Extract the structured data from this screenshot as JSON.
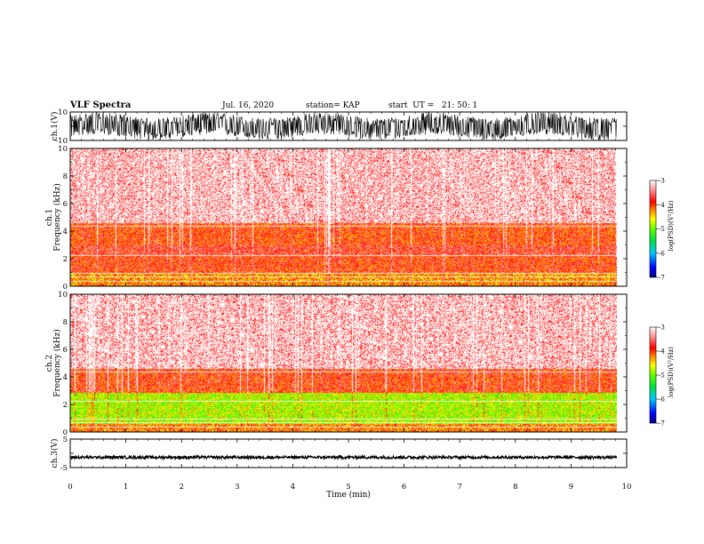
{
  "header": {
    "title": "VLF Spectra",
    "date": "Jul. 16, 2020",
    "station": "station= KAP",
    "start": "start  UT =   21: 50: 1"
  },
  "chart_data": [
    {
      "type": "line",
      "name": "ch1-waveform",
      "ylabel": "ch.1(V)",
      "ylim": [
        -10,
        10
      ],
      "yticks": [
        "10",
        "-10"
      ],
      "xlim": [
        0,
        10
      ],
      "x_end": 9.83,
      "amplitude_range": [
        -6,
        6
      ]
    },
    {
      "type": "heatmap",
      "name": "ch1-spectrogram",
      "ylabel": "ch.1\nFrequency  (kHz)",
      "ylim": [
        0,
        10
      ],
      "yticks": [
        0,
        2,
        4,
        6,
        8,
        10
      ],
      "xlim": [
        0,
        10
      ],
      "x_end": 9.83,
      "colorbar": {
        "label": "log(PSD)(V²/Hz)",
        "ticks": [
          "-3",
          "-4",
          "-5",
          "-6",
          "-7"
        ],
        "range": [
          -7,
          -3
        ]
      },
      "bands": [
        {
          "f0": 0,
          "f1": 0.3,
          "level": -4.2
        },
        {
          "f0": 0.3,
          "f1": 1.0,
          "level": -4.3
        },
        {
          "f0": 1.0,
          "f1": 2.2,
          "level": -3.9
        },
        {
          "f0": 2.2,
          "f1": 3.0,
          "level": -3.75
        },
        {
          "f0": 3.0,
          "f1": 4.6,
          "level": -3.95
        },
        {
          "f0": 4.6,
          "f1": 10,
          "level": -3.4
        }
      ]
    },
    {
      "type": "heatmap",
      "name": "ch2-spectrogram",
      "ylabel": "ch.2\nFrequency  (kHz)",
      "ylim": [
        0,
        10
      ],
      "yticks": [
        0,
        2,
        4,
        6,
        8,
        10
      ],
      "xlim": [
        0,
        10
      ],
      "x_end": 9.83,
      "colorbar": {
        "label": "log(PSD)(V²/Hz)",
        "ticks": [
          "-3",
          "-4",
          "-5",
          "-6",
          "-7"
        ],
        "range": [
          -7,
          -3
        ]
      },
      "bands": [
        {
          "f0": 0,
          "f1": 0.6,
          "level": -4.2
        },
        {
          "f0": 0.6,
          "f1": 2.9,
          "level": -4.8
        },
        {
          "f0": 2.9,
          "f1": 4.6,
          "level": -3.9
        },
        {
          "f0": 4.6,
          "f1": 10,
          "level": -3.4
        }
      ]
    },
    {
      "type": "line",
      "name": "ch3-waveform",
      "ylabel": "ch.3(V)",
      "ylim": [
        -5,
        5
      ],
      "yticks": [
        "5",
        "-5"
      ],
      "xlim": [
        0,
        10
      ],
      "x_end": 9.83,
      "level": -1.4,
      "amplitude_range": [
        -0.5,
        0.5
      ]
    }
  ],
  "xaxis": {
    "label": "Time  (min)",
    "ticks": [
      "0",
      "1",
      "2",
      "3",
      "4",
      "5",
      "6",
      "7",
      "8",
      "9",
      "10"
    ],
    "range": [
      0,
      10
    ]
  },
  "colors": {
    "scale": [
      "#000080",
      "#0000ff",
      "#00c8ff",
      "#00e040",
      "#60ff00",
      "#ffff00",
      "#ff8000",
      "#ff0000",
      "#ff9090",
      "#ffffff"
    ]
  }
}
